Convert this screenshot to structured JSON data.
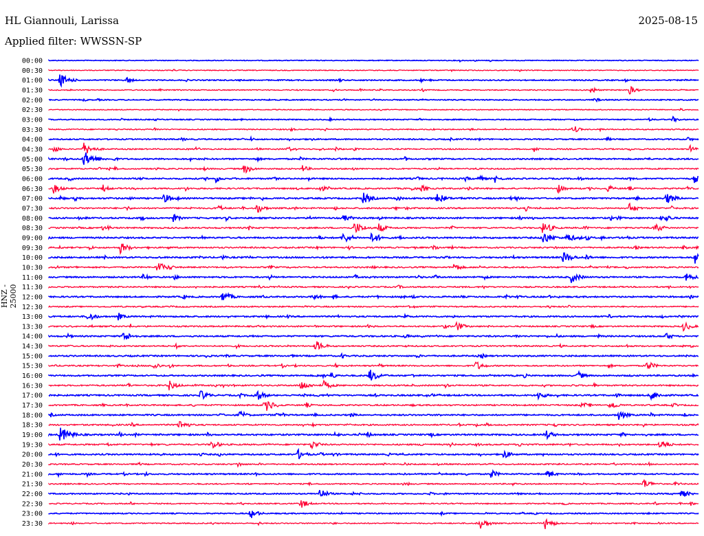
{
  "header": {
    "station": "HL Giannouli, Larissa",
    "date": "2025-08-15",
    "filter": "Applied filter: WWSSN-SP"
  },
  "chart_data": {
    "type": "line",
    "title": "HL Giannouli, Larissa",
    "ylabel": "HNZ - 25000",
    "row_minutes": 30,
    "colors": [
      "#0000ff",
      "#ff0033"
    ],
    "row_labels": [
      "00:00",
      "00:30",
      "01:00",
      "01:30",
      "02:00",
      "02:30",
      "03:00",
      "03:30",
      "04:00",
      "04:30",
      "05:00",
      "05:30",
      "06:00",
      "06:30",
      "07:00",
      "07:30",
      "08:00",
      "08:30",
      "09:00",
      "09:30",
      "10:00",
      "10:30",
      "11:00",
      "11:30",
      "12:00",
      "12:30",
      "13:00",
      "13:30",
      "14:00",
      "14:30",
      "15:00",
      "15:30",
      "16:00",
      "16:30",
      "17:00",
      "17:30",
      "18:00",
      "18:30",
      "19:00",
      "19:30",
      "20:00",
      "20:30",
      "21:00",
      "21:30",
      "22:00",
      "22:30",
      "23:00",
      "23:30"
    ],
    "row_activity": [
      0.2,
      0.3,
      0.6,
      0.5,
      0.5,
      0.3,
      0.5,
      0.6,
      0.7,
      0.7,
      0.9,
      0.8,
      0.9,
      1.0,
      1.0,
      1.0,
      1.0,
      1.0,
      1.0,
      1.0,
      1.0,
      1.0,
      0.9,
      0.9,
      0.9,
      0.8,
      0.9,
      0.9,
      0.9,
      0.9,
      0.9,
      0.9,
      0.9,
      1.0,
      1.0,
      1.0,
      0.9,
      1.0,
      1.0,
      1.0,
      0.9,
      0.8,
      0.8,
      0.7,
      0.7,
      0.7,
      0.6,
      0.6
    ],
    "events": [
      [
        2,
        0.5,
        10
      ],
      [
        2,
        3.6,
        5
      ],
      [
        3,
        13.1,
        3
      ],
      [
        3,
        25,
        6
      ],
      [
        3,
        26.8,
        7
      ],
      [
        4,
        25.2,
        4
      ],
      [
        6,
        28.8,
        5
      ],
      [
        7,
        11.1,
        4
      ],
      [
        7,
        24.3,
        5
      ],
      [
        8,
        12,
        4
      ],
      [
        8,
        29.5,
        4
      ],
      [
        9,
        0.2,
        6
      ],
      [
        9,
        1.6,
        10
      ],
      [
        9,
        6.8,
        4
      ],
      [
        9,
        11,
        5
      ],
      [
        9,
        22.4,
        5
      ],
      [
        9,
        29.6,
        6
      ],
      [
        10,
        1.6,
        12
      ],
      [
        11,
        9,
        8
      ],
      [
        11,
        11.7,
        6
      ],
      [
        12,
        7.7,
        6
      ],
      [
        12,
        19.8,
        6
      ],
      [
        12,
        20.6,
        6
      ],
      [
        12,
        29.8,
        7
      ],
      [
        13,
        0.2,
        8
      ],
      [
        13,
        2.5,
        6
      ],
      [
        13,
        12.5,
        6
      ],
      [
        13,
        17.2,
        6
      ],
      [
        13,
        23.5,
        7
      ],
      [
        13,
        25.8,
        6
      ],
      [
        14,
        5.3,
        8
      ],
      [
        14,
        14.5,
        9
      ],
      [
        14,
        17.9,
        9
      ],
      [
        14,
        28.5,
        9
      ],
      [
        15,
        7.8,
        6
      ],
      [
        15,
        9.6,
        8
      ],
      [
        15,
        26.8,
        8
      ],
      [
        16,
        5.7,
        7
      ],
      [
        16,
        13.6,
        6
      ],
      [
        16,
        28.5,
        6
      ],
      [
        17,
        14.1,
        10
      ],
      [
        17,
        15.2,
        8
      ],
      [
        17,
        22.8,
        10
      ],
      [
        17,
        28,
        8
      ],
      [
        18,
        13.6,
        9
      ],
      [
        18,
        14.9,
        9
      ],
      [
        18,
        22.8,
        10
      ],
      [
        18,
        23.9,
        8
      ],
      [
        19,
        3.3,
        9
      ],
      [
        19,
        17.7,
        6
      ],
      [
        20,
        23.7,
        10
      ],
      [
        20,
        29.8,
        10
      ],
      [
        21,
        5,
        9
      ],
      [
        21,
        18.7,
        7
      ],
      [
        22,
        24.1,
        9
      ],
      [
        22,
        29.4,
        8
      ],
      [
        24,
        8,
        9
      ],
      [
        24,
        12.2,
        6
      ],
      [
        26,
        1.8,
        8
      ],
      [
        26,
        3.2,
        6
      ],
      [
        27,
        18.8,
        8
      ],
      [
        27,
        29.3,
        8
      ],
      [
        28,
        3.4,
        9
      ],
      [
        28,
        28.5,
        6
      ],
      [
        29,
        12.3,
        9
      ],
      [
        31,
        4.8,
        7
      ],
      [
        31,
        19.7,
        8
      ],
      [
        31,
        27.6,
        8
      ],
      [
        32,
        13,
        6
      ],
      [
        32,
        14.8,
        10
      ],
      [
        32,
        24.4,
        7
      ],
      [
        33,
        5.5,
        9
      ],
      [
        33,
        11.6,
        9
      ],
      [
        33,
        12.6,
        9
      ],
      [
        34,
        7,
        8
      ],
      [
        34,
        9.6,
        8
      ],
      [
        34,
        22.6,
        7
      ],
      [
        34,
        27.8,
        8
      ],
      [
        35,
        10,
        10
      ],
      [
        35,
        25.9,
        8
      ],
      [
        36,
        8.8,
        7
      ],
      [
        36,
        26.3,
        8
      ],
      [
        37,
        6,
        9
      ],
      [
        38,
        0.5,
        12
      ],
      [
        38,
        22.9,
        8
      ],
      [
        39,
        7.5,
        8
      ],
      [
        39,
        12.1,
        8
      ],
      [
        39,
        28.2,
        9
      ],
      [
        40,
        11.5,
        8
      ],
      [
        40,
        21,
        7
      ],
      [
        41,
        8.7,
        5
      ],
      [
        42,
        20.4,
        7
      ],
      [
        42,
        23,
        7
      ],
      [
        43,
        27.4,
        9
      ],
      [
        44,
        12.5,
        8
      ],
      [
        44,
        29.2,
        7
      ],
      [
        45,
        11.6,
        8
      ],
      [
        46,
        9.3,
        8
      ],
      [
        47,
        19.9,
        9
      ],
      [
        47,
        22.9,
        9
      ]
    ]
  }
}
